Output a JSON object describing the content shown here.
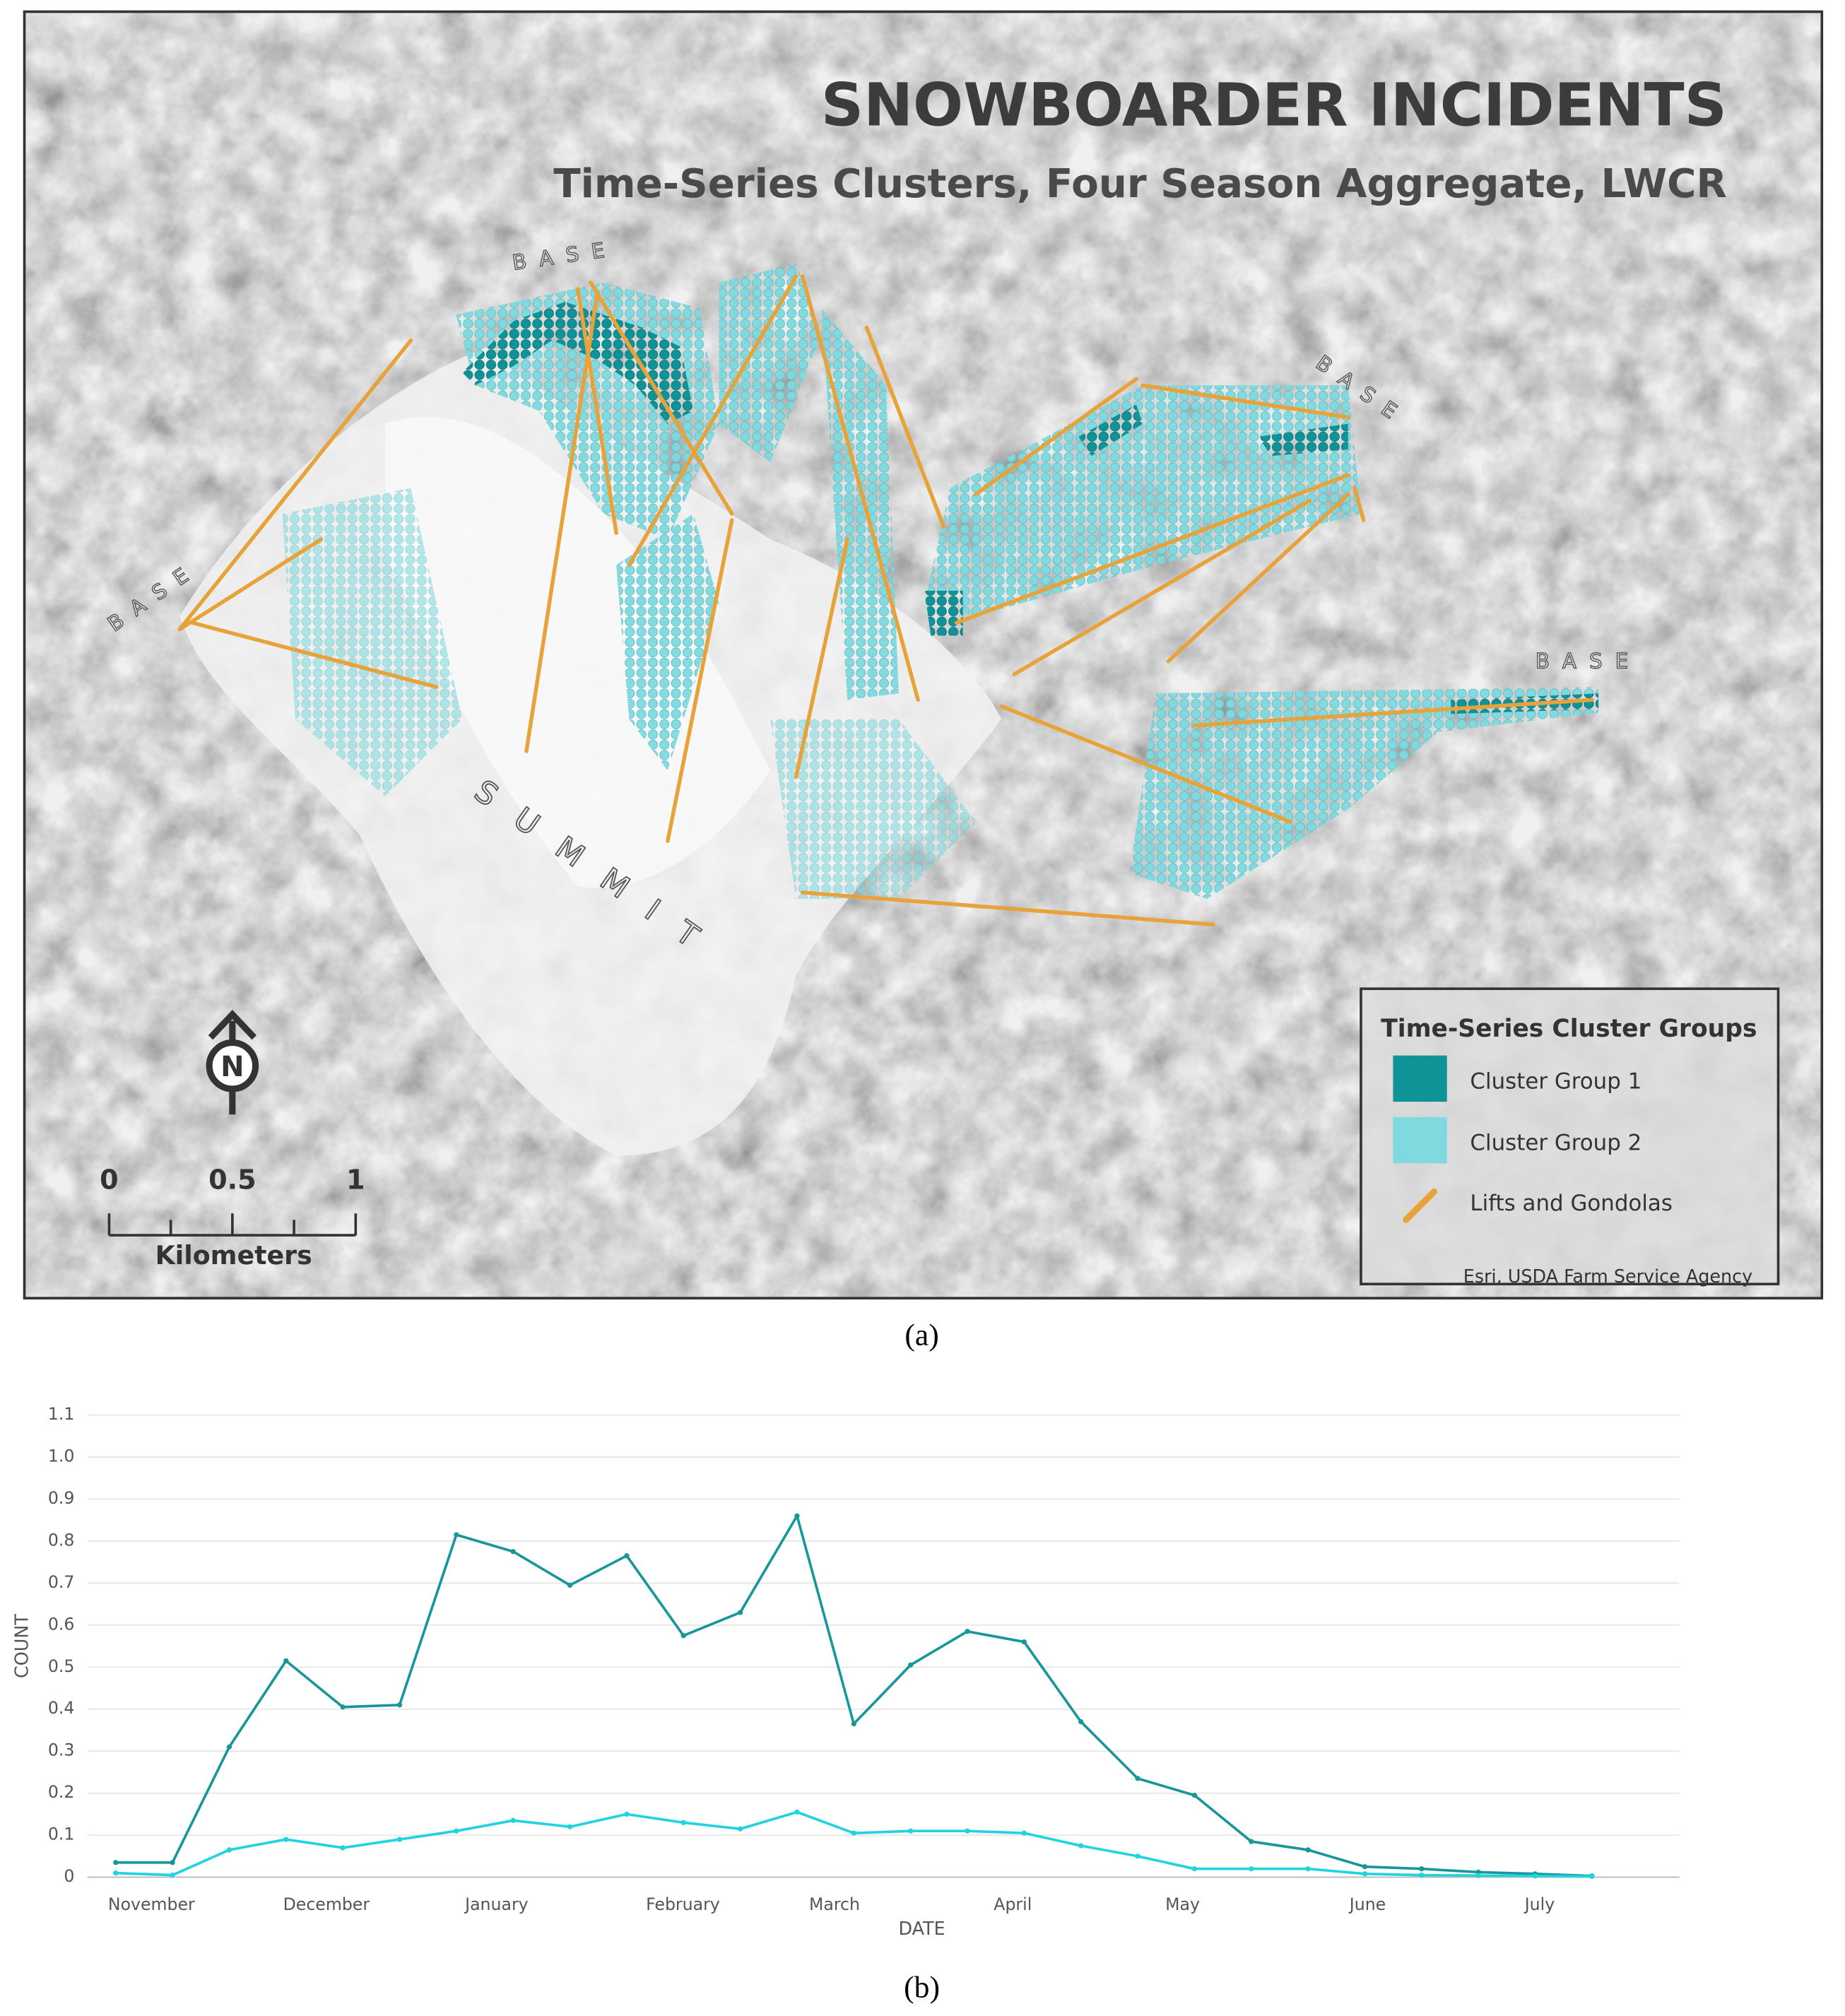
{
  "map": {
    "title": "SNOWBOARDER INCIDENTS",
    "subtitle": "Time-Series Clusters, Four Season Aggregate, LWCR",
    "base_labels": [
      "BASE",
      "BASE",
      "BASE",
      "BASE"
    ],
    "summit_label": "SUMMIT",
    "north": "N",
    "scale_labels": [
      "0",
      "0.5",
      "1"
    ],
    "scale_unit": "Kilometers",
    "legend_title": "Time-Series Cluster Groups",
    "legend_items": [
      "Cluster Group 1",
      "Cluster Group 2",
      "Lifts and Gondolas"
    ],
    "attribution": "Esri, USDA Farm Service Agency",
    "panel_label": "(a)"
  },
  "chart_data": {
    "type": "line",
    "panel_label": "(b)",
    "x_label": "DATE",
    "y_label": "COUNT",
    "x": [
      0,
      1,
      2,
      3,
      4,
      5,
      6,
      7,
      8,
      9,
      10,
      11,
      12,
      13,
      14,
      15,
      16,
      17,
      18,
      19,
      20,
      21,
      22,
      23,
      24,
      25,
      26
    ],
    "xlim": [
      -0.5,
      27.54
    ],
    "xticks": [
      {
        "value": 0.63,
        "label": "November"
      },
      {
        "value": 3.71,
        "label": "December"
      },
      {
        "value": 6.71,
        "label": "January"
      },
      {
        "value": 9.99,
        "label": "February"
      },
      {
        "value": 12.66,
        "label": "March"
      },
      {
        "value": 15.8,
        "label": "April"
      },
      {
        "value": 18.79,
        "label": "May"
      },
      {
        "value": 22.05,
        "label": "June"
      },
      {
        "value": 25.08,
        "label": "July"
      }
    ],
    "ylim": [
      0,
      1.1
    ],
    "yticks": [
      0,
      0.1,
      0.2,
      0.3,
      0.4,
      0.5,
      0.6,
      0.7,
      0.8,
      0.9,
      {
        "value": 1,
        "label": "1.0"
      },
      1.1
    ],
    "grid": true,
    "legend": "right",
    "series": [
      {
        "name": "Cluster Group 1",
        "color": "#17979a",
        "values": [
          0.035,
          0.035,
          0.31,
          0.515,
          0.405,
          0.41,
          0.815,
          0.775,
          0.695,
          0.765,
          0.575,
          0.63,
          0.86,
          0.365,
          0.505,
          0.585,
          0.56,
          0.37,
          0.235,
          0.195,
          0.085,
          0.065,
          0.025,
          0.02,
          0.012,
          0.008,
          0.003
        ]
      },
      {
        "name": "Cluster Group 2",
        "color": "#1fd3e0",
        "values": [
          0.01,
          0.005,
          0.065,
          0.09,
          0.07,
          0.09,
          0.11,
          0.135,
          0.12,
          0.15,
          0.13,
          0.115,
          0.155,
          0.105,
          0.11,
          0.11,
          0.105,
          0.075,
          0.05,
          0.02,
          0.02,
          0.02,
          0.008,
          0.005,
          0.004,
          0.003,
          0.002
        ]
      }
    ]
  }
}
